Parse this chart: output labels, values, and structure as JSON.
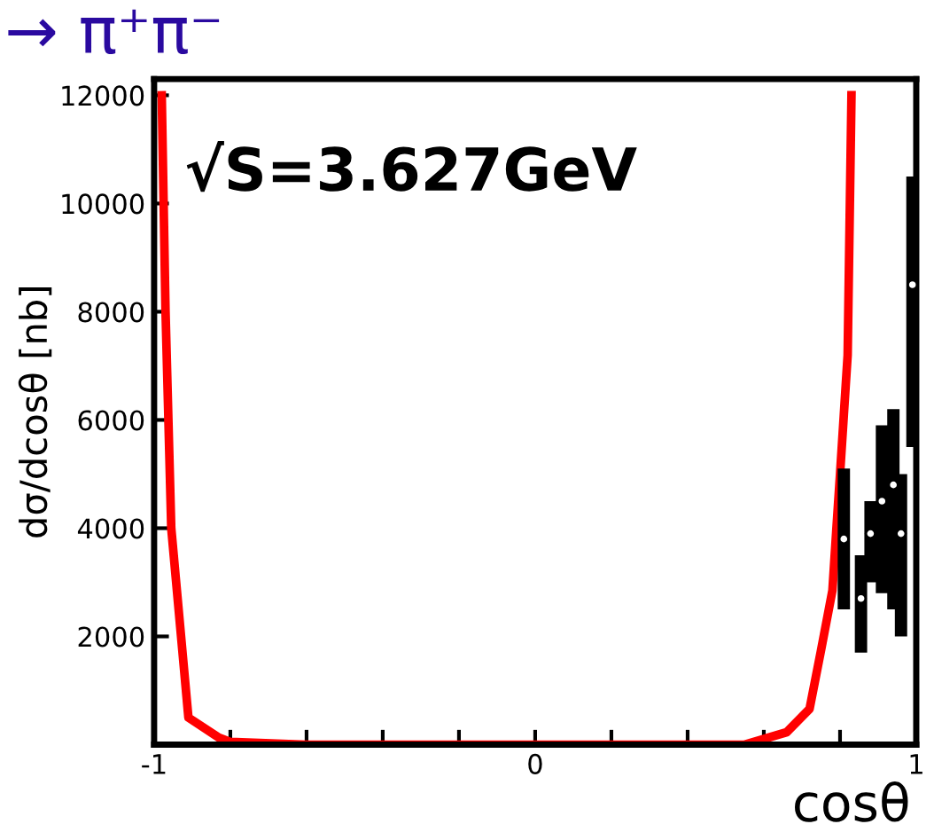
{
  "chart_data": {
    "type": "line",
    "title": "→ π⁺π⁻",
    "xlabel": "cosθ",
    "ylabel": "dσ/dcosθ [nb]",
    "annotations": [
      "√S=3.627GeV"
    ],
    "series": [
      {
        "color": "#ff0000",
        "x": [
          -0.98,
          -0.97,
          -0.955,
          -0.91,
          -0.83,
          -0.8,
          -0.6,
          0,
          0.55,
          0.66,
          0.72,
          0.75,
          0.78,
          0.79,
          0.8,
          0.81,
          0.82,
          0.83
        ],
        "values": [
          12000,
          8000,
          4000,
          500,
          130,
          50,
          0,
          0,
          0,
          230,
          660,
          1740,
          2850,
          3940,
          5000,
          6100,
          7200,
          12000
        ]
      },
      {
        "type": "scatter",
        "color": "#000000",
        "marker": "circle",
        "x": [
          0.81,
          0.855,
          0.88,
          0.91,
          0.94,
          0.96,
          0.99
        ],
        "values": [
          3800,
          2700,
          3900,
          4500,
          4800,
          3900,
          8500
        ],
        "errors": [
          [
            2500,
            5100
          ],
          [
            1700,
            3500
          ],
          [
            3000,
            4500
          ],
          [
            2800,
            5900
          ],
          [
            2500,
            6200
          ],
          [
            2000,
            5000
          ],
          [
            5500,
            10500
          ]
        ]
      }
    ],
    "xlim": [
      -1,
      1
    ],
    "ylim": [
      0,
      12300
    ],
    "xticks": [
      -1,
      {
        "value": -0.8,
        "label": null
      },
      {
        "value": -0.6,
        "label": null
      },
      {
        "value": -0.4,
        "label": null
      },
      {
        "value": -0.2,
        "label": null
      },
      0,
      {
        "value": 0.2,
        "label": null
      },
      {
        "value": 0.4,
        "label": null
      },
      {
        "value": 0.6,
        "label": null
      },
      {
        "value": 0.8,
        "label": null
      },
      1
    ],
    "yticks": [
      2000,
      4000,
      6000,
      8000,
      10000,
      12000
    ],
    "grid": false,
    "legend": false
  }
}
